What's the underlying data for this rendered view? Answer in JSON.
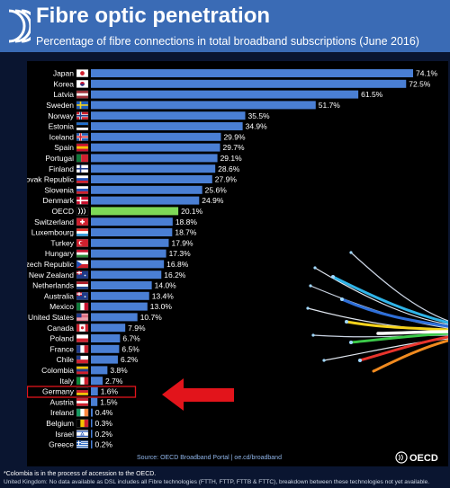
{
  "header": {
    "title": "Fibre optic penetration",
    "subtitle": "Percentage of fibre connections in total broadband subscriptions (June 2016)"
  },
  "chart_data": {
    "type": "bar",
    "orientation": "horizontal",
    "title": "Fibre optic penetration",
    "subtitle": "Percentage of fibre connections in total broadband subscriptions (June 2016)",
    "xlabel": "",
    "ylabel": "",
    "xlim": [
      0,
      74.1
    ],
    "grid": false,
    "legend": "none",
    "categories": [
      "Japan",
      "Korea",
      "Latvia",
      "Sweden",
      "Norway",
      "Estonia",
      "Iceland",
      "Spain",
      "Portugal",
      "Finland",
      "Slovak Republic",
      "Slovenia",
      "Denmark",
      "OECD",
      "Switzerland",
      "Luxembourg",
      "Turkey",
      "Hungary",
      "Czech Republic",
      "New Zealand",
      "Netherlands",
      "Australia",
      "Mexico",
      "United States",
      "Canada",
      "Poland",
      "France",
      "Chile",
      "Colombia",
      "Italy",
      "Germany",
      "Austria",
      "Ireland",
      "Belgium",
      "Israel",
      "Greece"
    ],
    "values": [
      74.1,
      72.5,
      61.5,
      51.7,
      35.5,
      34.9,
      29.9,
      29.7,
      29.1,
      28.6,
      27.9,
      25.6,
      24.9,
      20.1,
      18.8,
      18.7,
      17.9,
      17.3,
      16.8,
      16.2,
      14.0,
      13.4,
      13.0,
      10.7,
      7.9,
      6.7,
      6.5,
      6.2,
      3.8,
      2.7,
      1.6,
      1.5,
      0.4,
      0.3,
      0.2,
      0.2
    ],
    "labels": [
      "74.1%",
      "72.5%",
      "61.5%",
      "51.7%",
      "35.5%",
      "34.9%",
      "29.9%",
      "29.7%",
      "29.1%",
      "28.6%",
      "27.9%",
      "25.6%",
      "24.9%",
      "20.1%",
      "18.8%",
      "18.7%",
      "17.9%",
      "17.3%",
      "16.8%",
      "16.2%",
      "14.0%",
      "13.4%",
      "13.0%",
      "10.7%",
      "7.9%",
      "6.7%",
      "6.5%",
      "6.2%",
      "3.8%",
      "2.7%",
      "1.6%",
      "1.5%",
      "0.4%",
      "0.3%",
      "0.2%",
      "0.2%"
    ],
    "highlight": "OECD",
    "boxed": "Germany"
  },
  "colors": {
    "bar": "#4a7fd4",
    "highlight_bar": "#7ed957",
    "background": "#000000",
    "header": "#3a6bb5",
    "arrow": "#e2141b",
    "box": "#e2141b"
  },
  "footer": {
    "source": "Source: OECD Broadband Portal | oe.cd/broadband",
    "brand": "OECD",
    "note1": "*Colombia is in the process of accession to the OECD.",
    "note2": "United Kingdom: No data available as DSL includes all Fibre technologies (FTTH, FTTP, FTTB & FTTC), breakdown between these technologies not yet available."
  },
  "icons": {
    "logo": "oecd-logo-icon",
    "arrow": "red-arrow-icon",
    "illustration": "fibre-optic-cables-image"
  }
}
